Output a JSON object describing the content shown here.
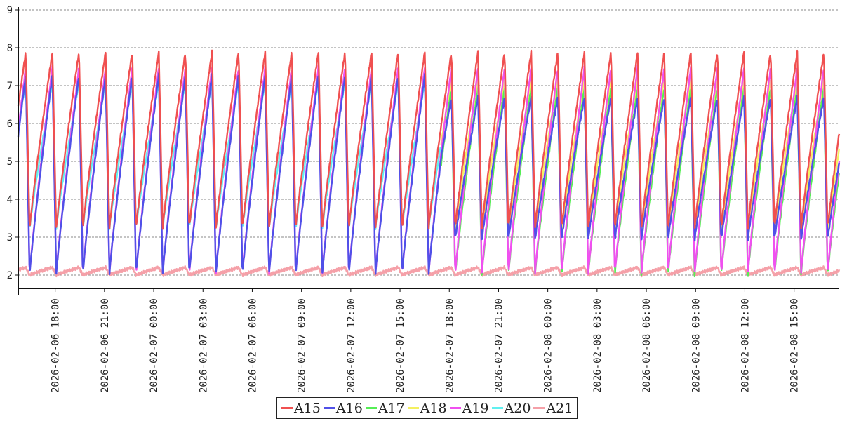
{
  "chart_data": {
    "type": "line",
    "title": "",
    "xlabel": "",
    "ylabel": "",
    "ylim": [
      2,
      9
    ],
    "y_ticks": [
      "2",
      "3",
      "4",
      "5",
      "6",
      "7",
      "8",
      "9"
    ],
    "grid": "horizontal dashed",
    "legend_position": "bottom-center",
    "x_range": [
      "2026-02-06 15:45",
      "2026-02-08 17:45"
    ],
    "x_tick_labels": [
      "2026-02-06 18:00",
      "2026-02-06 21:00",
      "2026-02-07 00:00",
      "2026-02-07 03:00",
      "2026-02-07 06:00",
      "2026-02-07 09:00",
      "2026-02-07 12:00",
      "2026-02-07 15:00",
      "2026-02-07 18:00",
      "2026-02-07 21:00",
      "2026-02-08 00:00",
      "2026-02-08 03:00",
      "2026-02-08 06:00",
      "2026-02-08 09:00",
      "2026-02-08 12:00",
      "2026-02-08 15:00"
    ],
    "cycle_period_hours": 1.62,
    "first_peak": "2026-02-06 17:50",
    "phase_switch": "2026-02-07 17:30",
    "series": [
      {
        "name": "A15",
        "color": "#f05050",
        "min": 3.2,
        "max": 7.9
      },
      {
        "name": "A16",
        "color": "#5050e8",
        "min": 2.0,
        "max": 7.3,
        "min_after_switch": 2.9,
        "max_after_switch": 6.7
      },
      {
        "name": "A17",
        "color": "#55ee55",
        "min": 2.0,
        "max": 7.0,
        "active_from": "2026-02-07 17:30"
      },
      {
        "name": "A18",
        "color": "#f4f060",
        "min": 3.1,
        "max": 7.2,
        "active_from": "2026-02-07 17:30"
      },
      {
        "name": "A19",
        "color": "#f050f0",
        "min": 2.0,
        "max": 7.5
      },
      {
        "name": "A20",
        "color": "#60f0f0",
        "min": 3.2,
        "max": 7.1,
        "active_until": "2026-02-07 17:30"
      },
      {
        "name": "A21",
        "color": "#f5a0a8",
        "min": 2.0,
        "max": 2.2
      }
    ]
  }
}
